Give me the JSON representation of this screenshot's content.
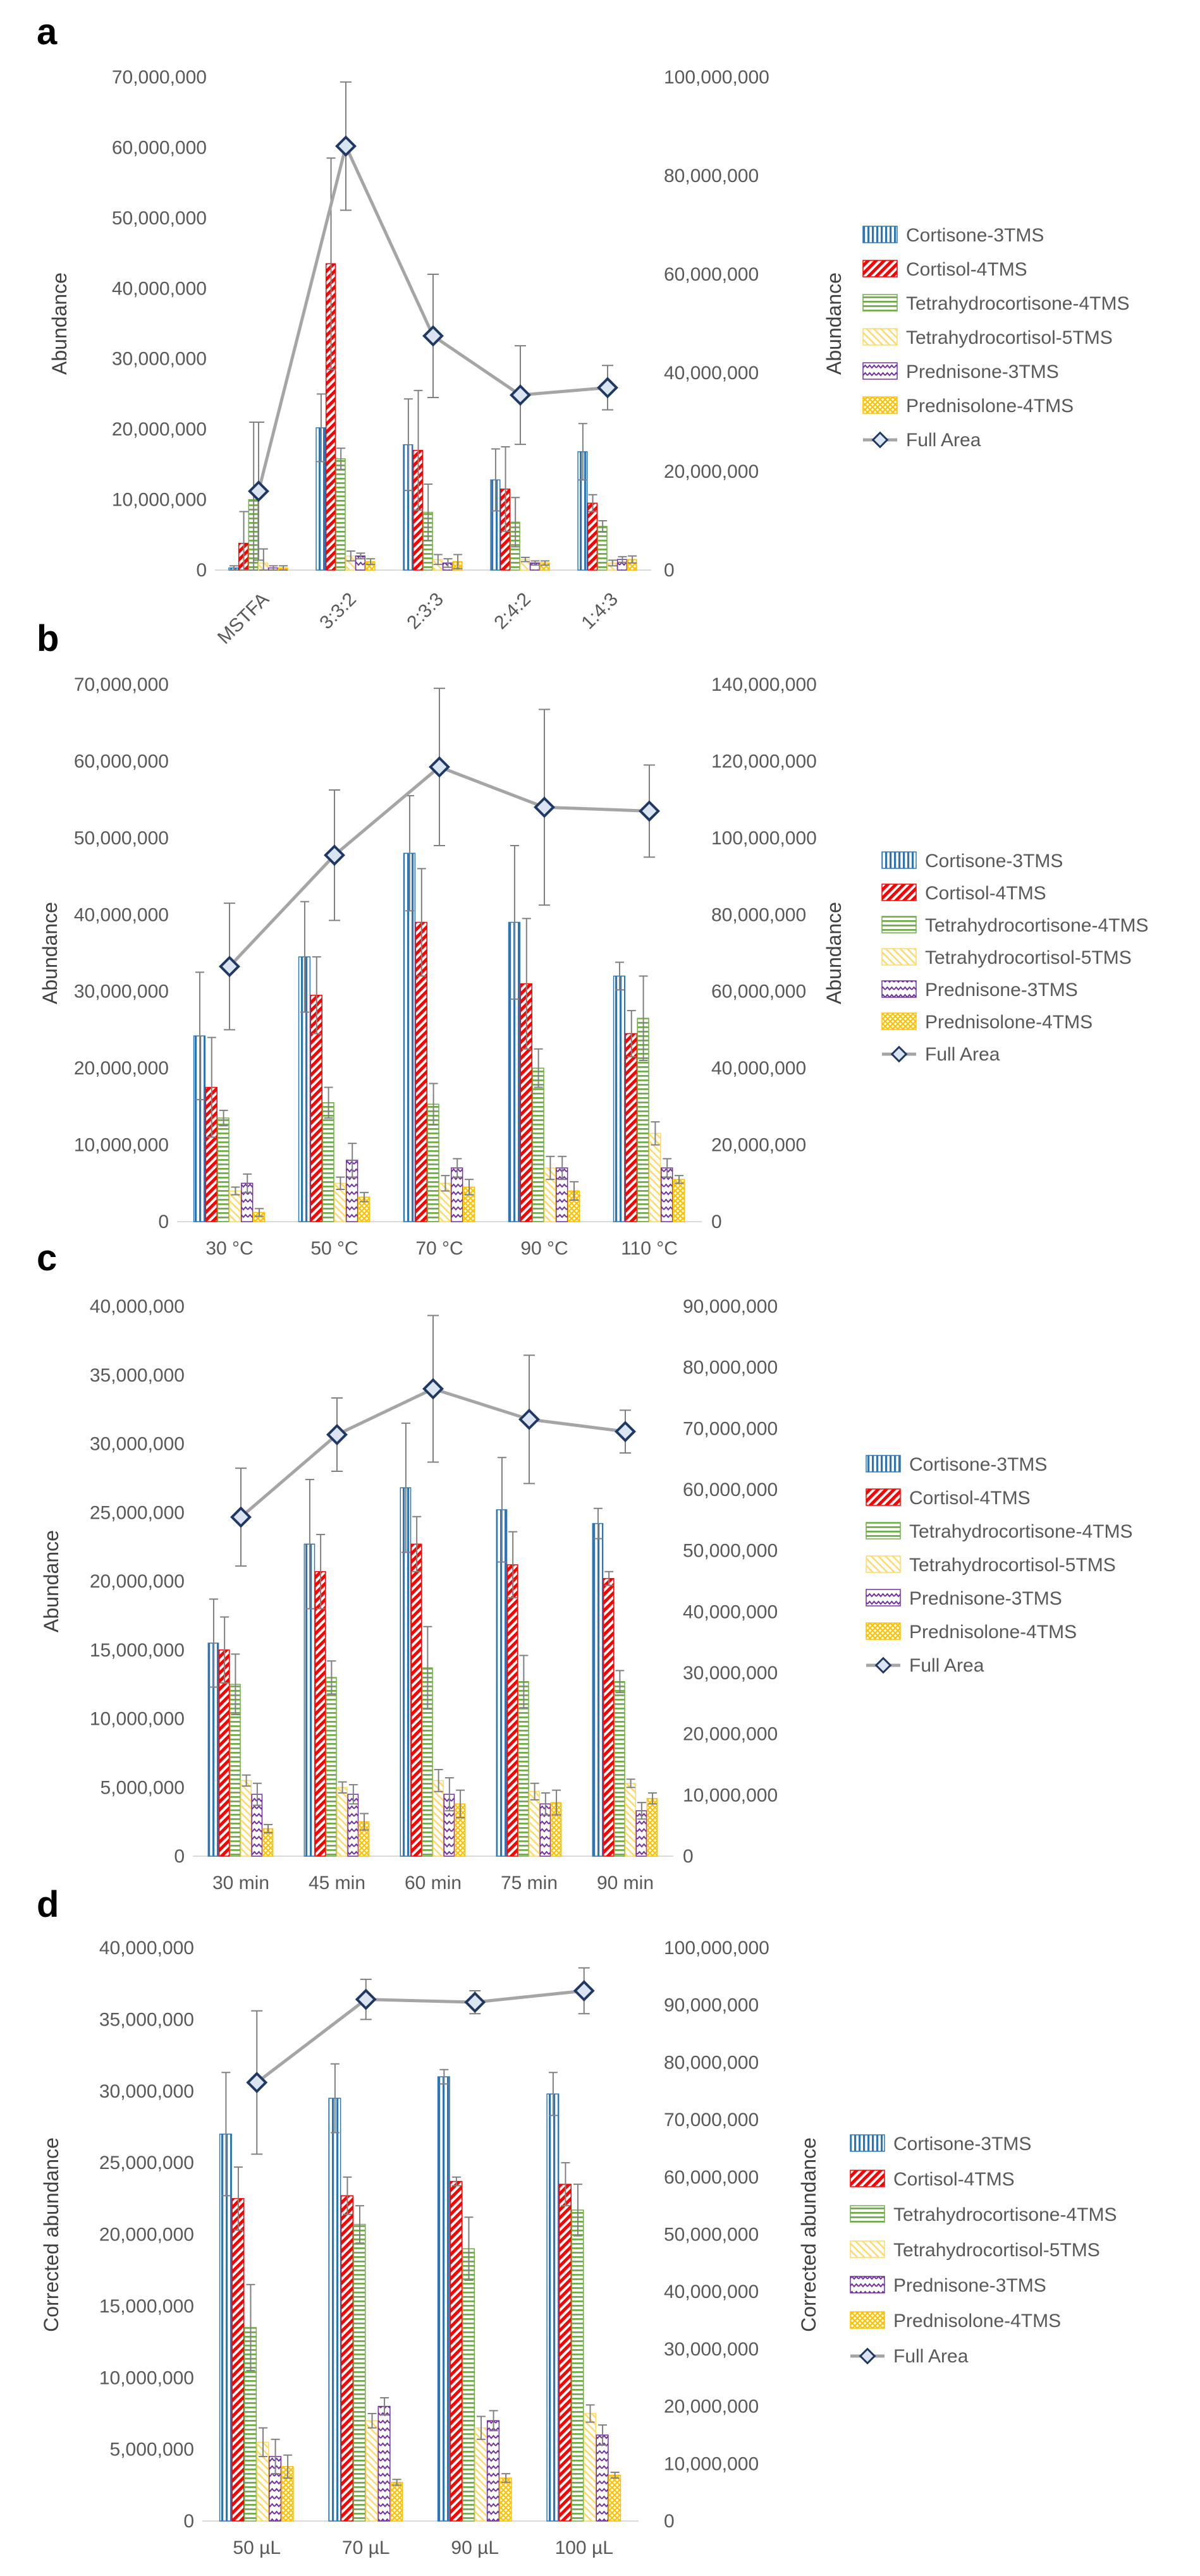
{
  "series_names": [
    "Cortisone-3TMS",
    "Cortisol-4TMS",
    "Tetrahydrocortisone-4TMS",
    "Tetrahydrocortisol-5TMS",
    "Prednisone-3TMS",
    "Prednisolone-4TMS"
  ],
  "full_area_name": "Full Area",
  "series_colors": [
    "#2e75b6",
    "#ff0000",
    "#70ad47",
    "#ffd966",
    "#7030a0",
    "#ffc000"
  ],
  "full_area_color": "#a5a5a5",
  "chart_data": [
    {
      "panel": "a",
      "type": "bar",
      "categories": [
        "MSTFA",
        "3:3:2",
        "2:3:3",
        "2:4:2",
        "1:4:3"
      ],
      "xlabel": "",
      "ylabel": "Abundance",
      "y2label": "Abundance",
      "ylim": [
        0,
        70000000
      ],
      "yticks": [
        0,
        10000000,
        20000000,
        30000000,
        40000000,
        50000000,
        60000000,
        70000000
      ],
      "y2lim": [
        0,
        100000000
      ],
      "y2ticks": [
        0,
        20000000,
        40000000,
        60000000,
        80000000,
        100000000
      ],
      "rotate_xlabels": true,
      "series": [
        {
          "name": "Cortisone-3TMS",
          "values": [
            300000,
            20200000,
            17800000,
            12800000,
            16800000
          ],
          "errors": [
            300000,
            4800000,
            6500000,
            4400000,
            4000000
          ]
        },
        {
          "name": "Cortisol-4TMS",
          "values": [
            3800000,
            43500000,
            17000000,
            11500000,
            9500000
          ],
          "errors": [
            4500000,
            15000000,
            8500000,
            6000000,
            1200000
          ]
        },
        {
          "name": "Tetrahydrocortisone-4TMS",
          "values": [
            10000000,
            15800000,
            8200000,
            6800000,
            6200000
          ],
          "errors": [
            11000000,
            1500000,
            4000000,
            3500000,
            800000
          ]
        },
        {
          "name": "Tetrahydrocortisol-5TMS",
          "values": [
            1000000,
            2000000,
            1500000,
            1500000,
            1000000
          ],
          "errors": [
            2000000,
            700000,
            700000,
            300000,
            400000
          ]
        },
        {
          "name": "Prednisone-3TMS",
          "values": [
            300000,
            2000000,
            1000000,
            1000000,
            1500000
          ],
          "errors": [
            300000,
            400000,
            600000,
            300000,
            400000
          ]
        },
        {
          "name": "Prednisolone-4TMS",
          "values": [
            300000,
            1200000,
            1200000,
            1000000,
            1500000
          ],
          "errors": [
            300000,
            400000,
            1000000,
            300000,
            500000
          ]
        }
      ],
      "full_area": {
        "name": "Full Area",
        "values": [
          16000000,
          86000000,
          47500000,
          35500000,
          37000000
        ],
        "errors": [
          14000000,
          13000000,
          12500000,
          10000000,
          4500000
        ]
      }
    },
    {
      "panel": "b",
      "type": "bar",
      "categories": [
        "30 °C",
        "50 °C",
        "70 °C",
        "90 °C",
        "110 °C"
      ],
      "xlabel": "",
      "ylabel": "Abundance",
      "y2label": "Abundance",
      "ylim": [
        0,
        70000000
      ],
      "yticks": [
        0,
        10000000,
        20000000,
        30000000,
        40000000,
        50000000,
        60000000,
        70000000
      ],
      "y2lim": [
        0,
        140000000
      ],
      "y2ticks": [
        0,
        20000000,
        40000000,
        60000000,
        80000000,
        100000000,
        120000000,
        140000000
      ],
      "rotate_xlabels": false,
      "series": [
        {
          "name": "Cortisone-3TMS",
          "values": [
            24200000,
            34500000,
            48000000,
            39000000,
            32000000
          ],
          "errors": [
            8300000,
            7200000,
            7500000,
            10000000,
            1800000
          ]
        },
        {
          "name": "Cortisol-4TMS",
          "values": [
            17500000,
            29500000,
            39000000,
            31000000,
            24500000
          ],
          "errors": [
            6500000,
            5000000,
            7000000,
            8500000,
            3000000
          ]
        },
        {
          "name": "Tetrahydrocortisone-4TMS",
          "values": [
            13500000,
            15500000,
            15300000,
            20000000,
            26500000
          ],
          "errors": [
            1000000,
            2000000,
            2700000,
            2500000,
            5500000
          ]
        },
        {
          "name": "Tetrahydrocortisol-5TMS",
          "values": [
            4000000,
            5000000,
            5000000,
            7000000,
            11500000
          ],
          "errors": [
            500000,
            800000,
            1000000,
            1500000,
            1500000
          ]
        },
        {
          "name": "Prednisone-3TMS",
          "values": [
            5000000,
            8000000,
            7000000,
            7000000,
            7000000
          ],
          "errors": [
            1200000,
            2200000,
            1200000,
            1500000,
            1200000
          ]
        },
        {
          "name": "Prednisolone-4TMS",
          "values": [
            1200000,
            3200000,
            4500000,
            4000000,
            5500000
          ],
          "errors": [
            500000,
            600000,
            1000000,
            1200000,
            500000
          ]
        }
      ],
      "full_area": {
        "name": "Full Area",
        "values": [
          66500000,
          95500000,
          118500000,
          108000000,
          107000000
        ],
        "errors": [
          16500000,
          17000000,
          20500000,
          25500000,
          12000000
        ]
      }
    },
    {
      "panel": "c",
      "type": "bar",
      "categories": [
        "30 min",
        "45 min",
        "60 min",
        "75 min",
        "90 min"
      ],
      "xlabel": "",
      "ylabel": "Abundance",
      "y2label": "",
      "ylim": [
        0,
        40000000
      ],
      "yticks": [
        0,
        5000000,
        10000000,
        15000000,
        20000000,
        25000000,
        30000000,
        35000000,
        40000000
      ],
      "y2lim": [
        0,
        90000000
      ],
      "y2ticks": [
        0,
        10000000,
        20000000,
        30000000,
        40000000,
        50000000,
        60000000,
        70000000,
        80000000,
        90000000
      ],
      "rotate_xlabels": false,
      "series": [
        {
          "name": "Cortisone-3TMS",
          "values": [
            15500000,
            22700000,
            26800000,
            25200000,
            24200000
          ],
          "errors": [
            3200000,
            4700000,
            4700000,
            3800000,
            1100000
          ]
        },
        {
          "name": "Cortisol-4TMS",
          "values": [
            15000000,
            20700000,
            22700000,
            21200000,
            20200000
          ],
          "errors": [
            2400000,
            2700000,
            2000000,
            2400000,
            500000
          ]
        },
        {
          "name": "Tetrahydrocortisone-4TMS",
          "values": [
            12500000,
            13000000,
            13700000,
            12700000,
            12700000
          ],
          "errors": [
            2200000,
            1200000,
            3000000,
            1900000,
            800000
          ]
        },
        {
          "name": "Tetrahydrocortisol-5TMS",
          "values": [
            5500000,
            5000000,
            5500000,
            4700000,
            5300000
          ],
          "errors": [
            400000,
            400000,
            800000,
            600000,
            300000
          ]
        },
        {
          "name": "Prednisone-3TMS",
          "values": [
            4500000,
            4500000,
            4500000,
            3800000,
            3300000
          ],
          "errors": [
            800000,
            700000,
            1200000,
            800000,
            600000
          ]
        },
        {
          "name": "Prednisolone-4TMS",
          "values": [
            2000000,
            2500000,
            3800000,
            3900000,
            4200000
          ],
          "errors": [
            300000,
            600000,
            1000000,
            900000,
            400000
          ]
        }
      ],
      "full_area": {
        "name": "Full Area",
        "values": [
          55500000,
          69000000,
          76500000,
          71500000,
          69500000
        ],
        "errors": [
          8000000,
          6000000,
          12000000,
          10500000,
          3500000
        ]
      }
    },
    {
      "panel": "d",
      "type": "bar",
      "categories": [
        "50 µL",
        "70 µL",
        "90 µL",
        "100 µL"
      ],
      "xlabel": "",
      "ylabel": "Corrected abundance",
      "y2label": "Corrected abundance",
      "ylim": [
        0,
        40000000
      ],
      "yticks": [
        0,
        5000000,
        10000000,
        15000000,
        20000000,
        25000000,
        30000000,
        35000000,
        40000000
      ],
      "y2lim": [
        0,
        100000000
      ],
      "y2ticks": [
        0,
        10000000,
        20000000,
        30000000,
        40000000,
        50000000,
        60000000,
        70000000,
        80000000,
        90000000,
        100000000
      ],
      "rotate_xlabels": false,
      "series": [
        {
          "name": "Cortisone-3TMS",
          "values": [
            27000000,
            29500000,
            31000000,
            29800000
          ],
          "errors": [
            4300000,
            2400000,
            500000,
            1500000
          ]
        },
        {
          "name": "Cortisol-4TMS",
          "values": [
            22500000,
            22700000,
            23700000,
            23500000
          ],
          "errors": [
            2200000,
            1300000,
            300000,
            1500000
          ]
        },
        {
          "name": "Tetrahydrocortisone-4TMS",
          "values": [
            13500000,
            20700000,
            19000000,
            21700000
          ],
          "errors": [
            3000000,
            1300000,
            2200000,
            1800000
          ]
        },
        {
          "name": "Tetrahydrocortisol-5TMS",
          "values": [
            5500000,
            7000000,
            6500000,
            7500000
          ],
          "errors": [
            1000000,
            500000,
            800000,
            600000
          ]
        },
        {
          "name": "Prednisone-3TMS",
          "values": [
            4500000,
            8000000,
            7000000,
            6000000
          ],
          "errors": [
            1200000,
            600000,
            700000,
            700000
          ]
        },
        {
          "name": "Prednisolone-4TMS",
          "values": [
            3800000,
            2700000,
            3000000,
            3200000
          ],
          "errors": [
            800000,
            200000,
            300000,
            200000
          ]
        }
      ],
      "full_area": {
        "name": "Full Area",
        "values": [
          76500000,
          91000000,
          90500000,
          92500000
        ],
        "errors": [
          12500000,
          3500000,
          2000000,
          4000000
        ]
      }
    }
  ]
}
